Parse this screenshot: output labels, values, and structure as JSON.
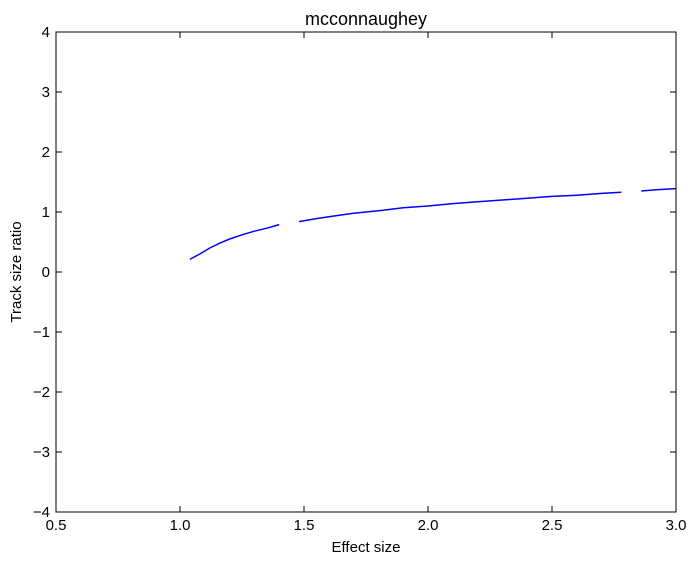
{
  "chart_data": {
    "type": "line",
    "title": "mcconnaughey",
    "xlabel": "Effect size",
    "ylabel": "Track size ratio",
    "xlim": [
      0.5,
      3.0
    ],
    "ylim": [
      -4,
      4
    ],
    "xticks": [
      0.5,
      1.0,
      1.5,
      2.0,
      2.5,
      3.0
    ],
    "xtick_labels": [
      "0.5",
      "1.0",
      "1.5",
      "2.0",
      "2.5",
      "3.0"
    ],
    "yticks": [
      -4,
      -3,
      -2,
      -1,
      0,
      1,
      2,
      3,
      4
    ],
    "ytick_labels": [
      "−4",
      "−3",
      "−2",
      "−1",
      "0",
      "1",
      "2",
      "3",
      "4"
    ],
    "grid": false,
    "series": [
      {
        "color": "#0000ff",
        "segments": [
          [
            [
              1.04,
              0.21
            ],
            [
              1.08,
              0.3
            ],
            [
              1.12,
              0.4
            ],
            [
              1.16,
              0.48
            ],
            [
              1.2,
              0.55
            ],
            [
              1.25,
              0.62
            ],
            [
              1.3,
              0.68
            ],
            [
              1.35,
              0.73
            ],
            [
              1.4,
              0.79
            ]
          ],
          [
            [
              1.48,
              0.84
            ],
            [
              1.55,
              0.89
            ],
            [
              1.6,
              0.92
            ],
            [
              1.7,
              0.98
            ],
            [
              1.8,
              1.02
            ],
            [
              1.9,
              1.07
            ],
            [
              2.0,
              1.1
            ],
            [
              2.1,
              1.14
            ],
            [
              2.2,
              1.17
            ],
            [
              2.3,
              1.2
            ],
            [
              2.4,
              1.23
            ],
            [
              2.5,
              1.26
            ],
            [
              2.6,
              1.28
            ],
            [
              2.7,
              1.31
            ],
            [
              2.78,
              1.33
            ]
          ],
          [
            [
              2.86,
              1.35
            ],
            [
              2.92,
              1.37
            ],
            [
              3.0,
              1.39
            ]
          ]
        ]
      }
    ]
  }
}
